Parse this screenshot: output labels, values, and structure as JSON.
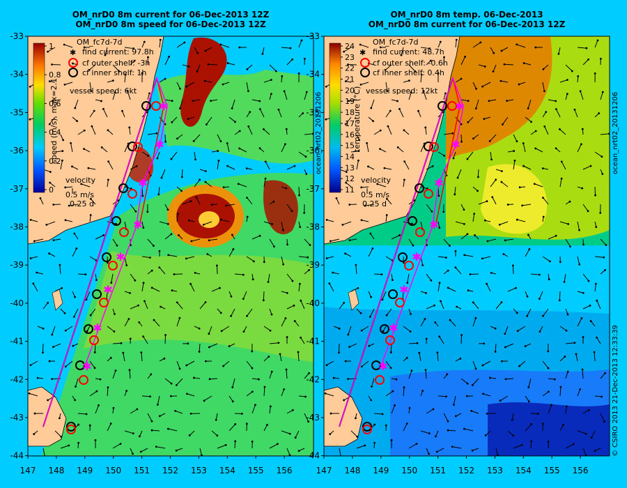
{
  "left_panel": {
    "title_line1": "OM_nrD0 8m current for 06-Dec-2013 12Z",
    "title_line2": "OM_nrD0 8m speed for 06-Dec-2013 12Z",
    "legend_title": "OM_fc7d-7d",
    "legend_items": [
      {
        "label": "find current: 97.8h",
        "marker": "asterisk",
        "color": "#ff00ff"
      },
      {
        "label": "cf outer shelf: -3h",
        "marker": "circle",
        "color": "#ff0000"
      },
      {
        "label": "cf inner shelf: 1h",
        "marker": "circle",
        "color": "#000000"
      }
    ],
    "vessel_speed": "vessel speed: 6kt",
    "colorbar_label": "speed (m/s), max=2.1",
    "colorbar_ticks": [
      "1",
      "0.8",
      "0.6",
      "0.4",
      "0.2",
      "0"
    ],
    "velocity_label": "velocity",
    "velocity_scale": "0.5 m/s",
    "velocity_time": "0.25 d",
    "side_text": "ocean_nrt02_20131206"
  },
  "right_panel": {
    "title_line1": "OM_nrD0 8m temp. 06-Dec-2013",
    "title_line2": "OM_nrD0 8m current for 06-Dec-2013 12Z",
    "legend_title": "OM_fc7d-7d",
    "legend_items": [
      {
        "label": "find current: 48.7h",
        "marker": "asterisk",
        "color": "#ff00ff"
      },
      {
        "label": "cf outer shelf: -0.6h",
        "marker": "circle",
        "color": "#ff0000"
      },
      {
        "label": "cf inner shelf: 0.4h",
        "marker": "circle",
        "color": "#000000"
      }
    ],
    "vessel_speed": "vessel speed: 12kt",
    "colorbar_label": "temperature (°C)",
    "colorbar_ticks": [
      "24",
      "23",
      "22",
      "21",
      "20",
      "19",
      "18",
      "17",
      "16",
      "15",
      "14",
      "13",
      "12",
      "11"
    ],
    "velocity_label": "velocity",
    "velocity_scale": "0.5 m/s",
    "velocity_time": "0.25 d",
    "side_text": "ocean_nrt02_20131206"
  },
  "y_ticks": [
    "-33",
    "-34",
    "-35",
    "-36",
    "-37",
    "-38",
    "-39",
    "-40",
    "-41",
    "-42",
    "-43",
    "-44"
  ],
  "x_ticks": [
    "147",
    "148",
    "149",
    "150",
    "151",
    "152",
    "153",
    "154",
    "155",
    "156"
  ],
  "copyright": "© CSIRO 2013   21-Dec-2013 12:33:39",
  "colors": {
    "background": "#00ccff",
    "land": "#ffcc99",
    "inner_shelf": "#000000",
    "outer_shelf": "#ff2222",
    "find_current": "#ff00ff"
  }
}
